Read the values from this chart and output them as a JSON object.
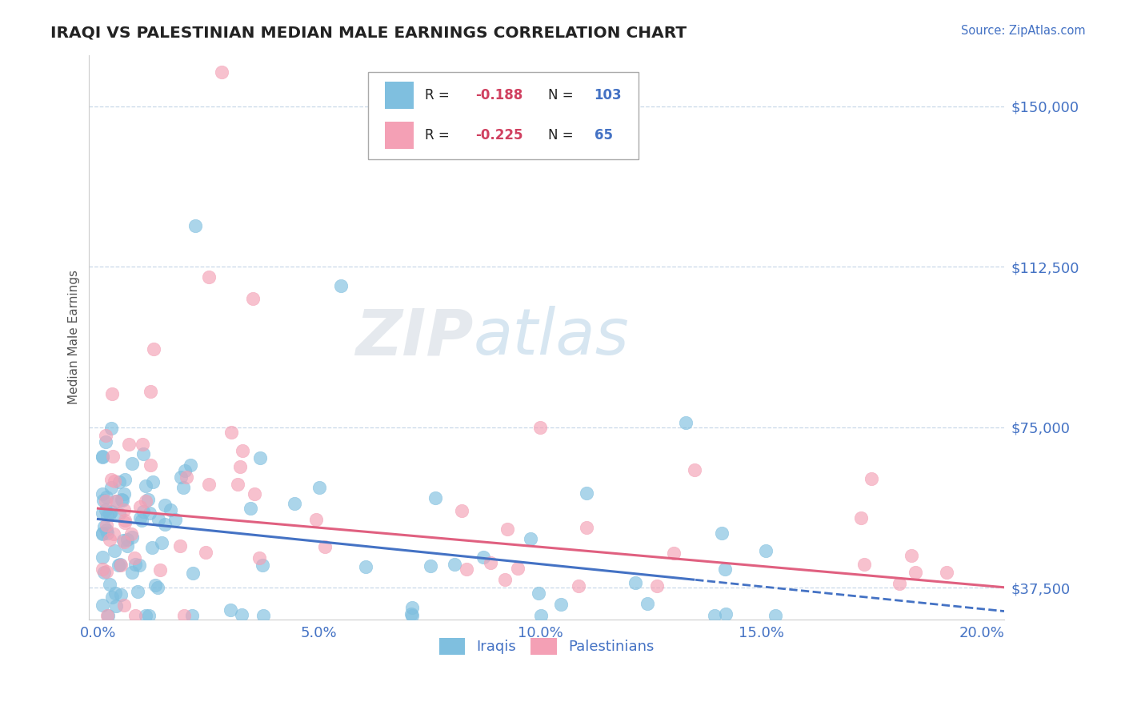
{
  "title": "IRAQI VS PALESTINIAN MEDIAN MALE EARNINGS CORRELATION CHART",
  "source_text": "Source: ZipAtlas.com",
  "ylabel": "Median Male Earnings",
  "watermark_zip": "ZIP",
  "watermark_atlas": "atlas",
  "xlim": [
    -0.002,
    0.205
  ],
  "ylim": [
    30000,
    162000
  ],
  "yticks": [
    37500,
    75000,
    112500,
    150000
  ],
  "ytick_labels": [
    "$37,500",
    "$75,000",
    "$112,500",
    "$150,000"
  ],
  "xticks": [
    0.0,
    0.05,
    0.1,
    0.15,
    0.2
  ],
  "xtick_labels": [
    "0.0%",
    "5.0%",
    "10.0%",
    "15.0%",
    "20.0%"
  ],
  "iraqis_color": "#7fbfdf",
  "palestinians_color": "#f4a0b5",
  "iraqis_line_color": "#4472c4",
  "palestinians_line_color": "#e06080",
  "R_iraqis": -0.188,
  "N_iraqis": 103,
  "R_palestinians": -0.225,
  "N_palestinians": 65,
  "background_color": "#ffffff",
  "grid_color": "#c8d8e8",
  "title_color": "#222222",
  "axis_label_color": "#555555",
  "ytick_label_color": "#4472c4",
  "xtick_label_color": "#4472c4",
  "legend_R_color": "#d04060",
  "legend_N_color": "#4472c4",
  "iraqis_line_solid_end": 0.135,
  "palestinians_line_solid_end": 0.205,
  "reg_iraqis_intercept": 53500,
  "reg_iraqis_slope": -105000,
  "reg_palestinians_intercept": 56000,
  "reg_palestinians_slope": -90000
}
